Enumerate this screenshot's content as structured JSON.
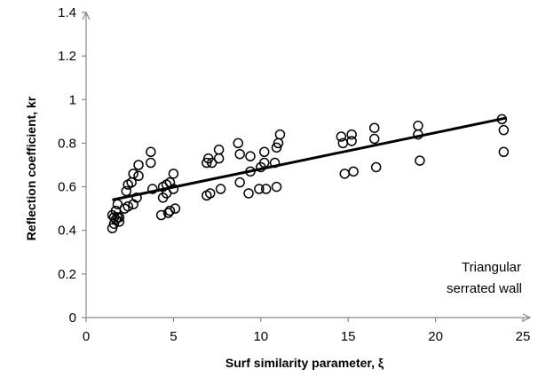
{
  "chart_data": {
    "type": "scatter",
    "xlabel": "Surf similarity parameter, ξ",
    "ylabel": "Reflection coefficient, kr",
    "xlim": [
      0,
      25
    ],
    "ylim": [
      0,
      1.4
    ],
    "xticks": [
      "0",
      "5",
      "10",
      "15",
      "20",
      "25"
    ],
    "yticks": [
      "0",
      "0.2",
      "0.4",
      "0.6",
      "0.8",
      "1",
      "1.2",
      "1.4"
    ],
    "grid": false,
    "annotation": [
      "Triangular",
      "serrated wall"
    ],
    "series": [
      {
        "marker": "open-circle",
        "x": [
          1.5,
          1.5,
          1.6,
          1.6,
          1.7,
          1.7,
          1.8,
          1.8,
          1.9,
          1.9,
          2.2,
          2.3,
          2.4,
          2.4,
          2.6,
          2.7,
          2.7,
          2.9,
          3.0,
          3.0,
          3.7,
          3.7,
          3.8,
          4.3,
          4.4,
          4.4,
          4.6,
          4.6,
          4.7,
          4.8,
          4.8,
          5.0,
          5.0,
          5.1,
          6.9,
          6.9,
          7.0,
          7.1,
          7.2,
          7.6,
          7.6,
          7.7,
          8.7,
          8.8,
          8.8,
          9.3,
          9.4,
          9.4,
          9.9,
          10.0,
          10.2,
          10.2,
          10.3,
          10.8,
          10.9,
          10.9,
          11.0,
          11.1,
          14.6,
          14.7,
          14.8,
          15.2,
          15.2,
          15.3,
          16.5,
          16.5,
          16.6,
          19.0,
          19.0,
          19.1,
          23.8,
          23.9,
          23.9
        ],
        "y": [
          0.41,
          0.47,
          0.43,
          0.46,
          0.45,
          0.49,
          0.46,
          0.52,
          0.44,
          0.46,
          0.5,
          0.58,
          0.61,
          0.51,
          0.62,
          0.66,
          0.52,
          0.55,
          0.65,
          0.7,
          0.76,
          0.71,
          0.59,
          0.47,
          0.6,
          0.55,
          0.61,
          0.57,
          0.48,
          0.62,
          0.49,
          0.59,
          0.66,
          0.5,
          0.56,
          0.71,
          0.73,
          0.57,
          0.71,
          0.77,
          0.73,
          0.59,
          0.8,
          0.75,
          0.62,
          0.57,
          0.67,
          0.74,
          0.59,
          0.69,
          0.76,
          0.71,
          0.59,
          0.71,
          0.6,
          0.78,
          0.8,
          0.84,
          0.83,
          0.8,
          0.66,
          0.84,
          0.81,
          0.67,
          0.87,
          0.82,
          0.69,
          0.88,
          0.84,
          0.72,
          0.91,
          0.86,
          0.76
        ]
      }
    ],
    "trendline": {
      "x": [
        1.5,
        24
      ],
      "y": [
        0.54,
        0.915
      ]
    }
  }
}
